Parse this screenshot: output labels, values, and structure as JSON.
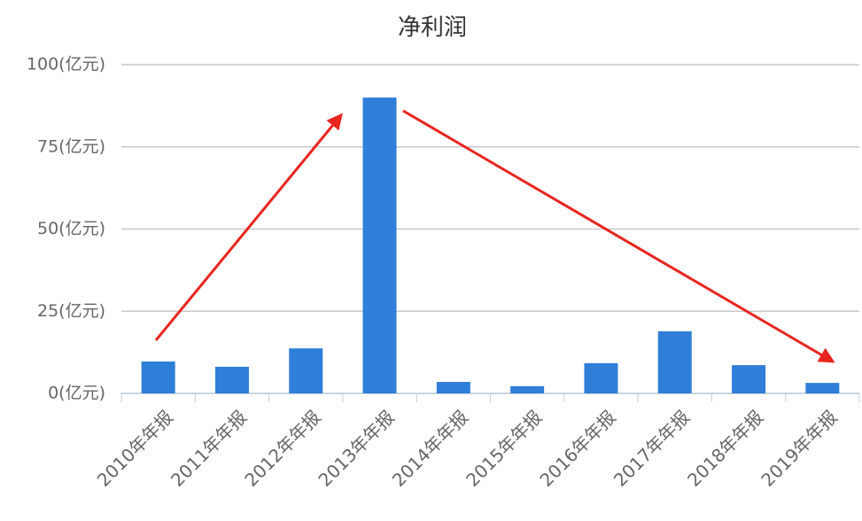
{
  "chart_data": {
    "type": "bar",
    "title": "净利润",
    "categories": [
      "2010年年报",
      "2011年年报",
      "2012年年报",
      "2013年年报",
      "2014年年报",
      "2015年年报",
      "2016年年报",
      "2017年年报",
      "2018年年报",
      "2019年年报"
    ],
    "values": [
      9.7,
      8.1,
      13.7,
      90.0,
      3.5,
      2.2,
      9.2,
      18.9,
      8.6,
      3.2
    ],
    "color": "#2f7ed8",
    "ylim": [
      0,
      100
    ],
    "yticks": [
      {
        "value": 0,
        "label": "0(亿元)"
      },
      {
        "value": 25,
        "label": "25(亿元)"
      },
      {
        "value": 50,
        "label": "50(亿元)"
      },
      {
        "value": 75,
        "label": "75(亿元)"
      },
      {
        "value": 100,
        "label": "100(亿元)"
      }
    ],
    "grid": true
  }
}
